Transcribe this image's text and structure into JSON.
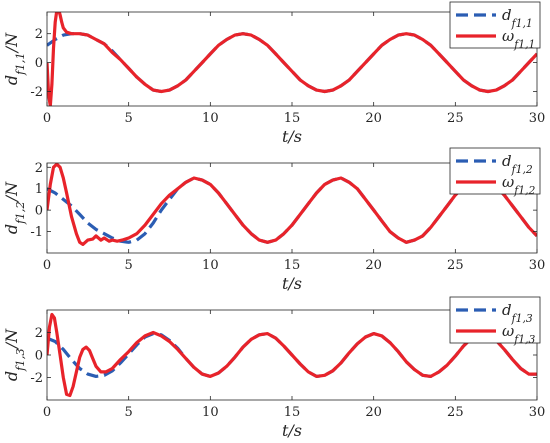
{
  "chart_data": [
    {
      "type": "line",
      "ylabel": "d_{f1,1}/N",
      "xlabel": "t/s",
      "xlim": [
        0,
        30
      ],
      "ylim": [
        -3,
        3.5
      ],
      "xticks": [
        0,
        5,
        10,
        15,
        20,
        25,
        30
      ],
      "yticks": [
        -2,
        0,
        2
      ],
      "legend_position": "top-right",
      "grid": false,
      "series": [
        {
          "name": "d_{f1,1}",
          "style": "dashed",
          "color": "#2b5db3",
          "x": [
            0,
            0.5,
            1,
            1.5,
            2,
            2.5,
            3,
            3.5,
            4,
            4.5,
            5,
            5.5,
            6,
            6.5,
            7,
            7.5,
            8,
            8.5,
            9,
            9.5,
            10,
            10.5,
            11,
            11.5,
            12,
            12.5,
            13,
            13.5,
            14,
            14.5,
            15,
            15.5,
            16,
            16.5,
            17,
            17.5,
            18,
            18.5,
            19,
            19.5,
            20,
            20.5,
            21,
            21.5,
            22,
            22.5,
            23,
            23.5,
            24,
            24.5,
            25,
            25.5,
            26,
            26.5,
            27,
            27.5,
            28,
            28.5,
            29,
            29.5,
            30
          ],
          "y": [
            1.2,
            1.6,
            1.9,
            2.0,
            2.0,
            1.9,
            1.6,
            1.3,
            0.8,
            0.2,
            -0.4,
            -1.0,
            -1.5,
            -1.9,
            -2.0,
            -1.9,
            -1.6,
            -1.2,
            -0.6,
            0.0,
            0.6,
            1.2,
            1.6,
            1.9,
            2.0,
            1.9,
            1.6,
            1.2,
            0.6,
            0.0,
            -0.6,
            -1.2,
            -1.6,
            -1.9,
            -2.0,
            -1.9,
            -1.6,
            -1.2,
            -0.6,
            0.0,
            0.6,
            1.2,
            1.6,
            1.9,
            2.0,
            1.9,
            1.6,
            1.2,
            0.6,
            0.0,
            -0.6,
            -1.2,
            -1.6,
            -1.9,
            -2.0,
            -1.9,
            -1.6,
            -1.2,
            -0.6,
            0.0,
            0.6
          ]
        },
        {
          "name": "ω_{f1,1}",
          "style": "solid",
          "color": "#e8232a",
          "x": [
            0,
            0.1,
            0.2,
            0.3,
            0.4,
            0.5,
            0.6,
            0.7,
            0.8,
            0.9,
            1.0,
            1.2,
            1.5,
            1.8,
            2,
            2.5,
            3,
            3.5,
            4,
            4.5,
            5,
            5.5,
            6,
            6.5,
            7,
            7.5,
            8,
            8.5,
            9,
            9.5,
            10,
            10.5,
            11,
            11.5,
            12,
            12.5,
            13,
            13.5,
            14,
            14.5,
            15,
            15.5,
            16,
            16.5,
            17,
            17.5,
            18,
            18.5,
            19,
            19.5,
            20,
            20.5,
            21,
            21.5,
            22,
            22.5,
            23,
            23.5,
            24,
            24.5,
            25,
            25.5,
            26,
            26.5,
            27,
            27.5,
            28,
            28.5,
            29,
            29.5,
            30
          ],
          "y": [
            0.0,
            -2.2,
            -3.0,
            -1.5,
            1.0,
            2.8,
            3.6,
            3.7,
            3.3,
            2.8,
            2.4,
            2.1,
            2.0,
            2.0,
            2.0,
            1.9,
            1.6,
            1.3,
            0.7,
            0.2,
            -0.4,
            -1.0,
            -1.5,
            -1.9,
            -2.0,
            -1.9,
            -1.6,
            -1.2,
            -0.6,
            0.0,
            0.6,
            1.2,
            1.6,
            1.9,
            2.0,
            1.9,
            1.6,
            1.2,
            0.6,
            0.0,
            -0.6,
            -1.2,
            -1.6,
            -1.9,
            -2.0,
            -1.9,
            -1.6,
            -1.2,
            -0.6,
            0.0,
            0.6,
            1.2,
            1.6,
            1.9,
            2.0,
            1.9,
            1.6,
            1.2,
            0.6,
            0.0,
            -0.6,
            -1.2,
            -1.6,
            -1.9,
            -2.0,
            -1.9,
            -1.6,
            -1.2,
            -0.6,
            0.0,
            0.6
          ]
        }
      ]
    },
    {
      "type": "line",
      "ylabel": "d_{f1,2}/N",
      "xlabel": "t/s",
      "xlim": [
        0,
        30
      ],
      "ylim": [
        -2,
        2.2
      ],
      "xticks": [
        0,
        5,
        10,
        15,
        20,
        25,
        30
      ],
      "yticks": [
        -1,
        0,
        1,
        2
      ],
      "legend_position": "top-right",
      "grid": false,
      "series": [
        {
          "name": "d_{f1,2}",
          "style": "dashed",
          "color": "#2b5db3",
          "x": [
            0,
            0.5,
            1,
            1.5,
            2,
            2.5,
            3,
            3.5,
            4,
            4.5,
            5,
            5.5,
            6,
            6.5,
            7,
            7.5,
            8,
            8.5,
            9,
            9.5,
            10,
            10.5,
            11,
            11.5,
            12,
            12.5,
            13,
            13.5,
            14,
            14.5,
            15,
            15.5,
            16,
            16.5,
            17,
            17.5,
            18,
            18.5,
            19,
            19.5,
            20,
            20.5,
            21,
            21.5,
            22,
            22.5,
            23,
            23.5,
            24,
            24.5,
            25,
            25.5,
            26,
            26.5,
            27,
            27.5,
            28,
            28.5,
            29,
            29.5,
            30
          ],
          "y": [
            1.0,
            0.8,
            0.5,
            0.2,
            -0.2,
            -0.6,
            -0.9,
            -1.1,
            -1.3,
            -1.45,
            -1.5,
            -1.4,
            -1.1,
            -0.6,
            0.0,
            0.5,
            1.0,
            1.3,
            1.5,
            1.4,
            1.2,
            0.8,
            0.3,
            -0.2,
            -0.7,
            -1.1,
            -1.4,
            -1.5,
            -1.4,
            -1.1,
            -0.7,
            -0.2,
            0.3,
            0.8,
            1.2,
            1.4,
            1.5,
            1.3,
            1.0,
            0.5,
            0.0,
            -0.5,
            -1.0,
            -1.3,
            -1.5,
            -1.4,
            -1.2,
            -0.8,
            -0.3,
            0.2,
            0.7,
            1.1,
            1.4,
            1.5,
            1.4,
            1.1,
            0.7,
            0.2,
            -0.3,
            -0.8,
            -1.2
          ]
        },
        {
          "name": "ω_{f1,2}",
          "style": "solid",
          "color": "#e8232a",
          "x": [
            0,
            0.2,
            0.4,
            0.6,
            0.8,
            1.0,
            1.2,
            1.5,
            1.8,
            2.0,
            2.2,
            2.5,
            2.8,
            3.0,
            3.3,
            3.5,
            3.8,
            4.0,
            4.3,
            4.6,
            5.0,
            5.5,
            6,
            6.5,
            7,
            7.5,
            8,
            8.5,
            9,
            9.5,
            10,
            10.5,
            11,
            11.5,
            12,
            12.5,
            13,
            13.5,
            14,
            14.5,
            15,
            15.5,
            16,
            16.5,
            17,
            17.5,
            18,
            18.5,
            19,
            19.5,
            20,
            20.5,
            21,
            21.5,
            22,
            22.5,
            23,
            23.5,
            24,
            24.5,
            25,
            25.5,
            26,
            26.5,
            27,
            27.5,
            28,
            28.5,
            29,
            29.5,
            30
          ],
          "y": [
            0.0,
            1.2,
            2.0,
            2.15,
            2.0,
            1.5,
            0.8,
            -0.3,
            -1.1,
            -1.5,
            -1.6,
            -1.4,
            -1.35,
            -1.2,
            -1.4,
            -1.3,
            -1.45,
            -1.4,
            -1.45,
            -1.4,
            -1.3,
            -1.1,
            -0.7,
            -0.2,
            0.3,
            0.7,
            1.0,
            1.3,
            1.5,
            1.4,
            1.2,
            0.8,
            0.3,
            -0.2,
            -0.7,
            -1.1,
            -1.4,
            -1.5,
            -1.4,
            -1.1,
            -0.7,
            -0.2,
            0.3,
            0.8,
            1.2,
            1.4,
            1.5,
            1.3,
            1.0,
            0.5,
            0.0,
            -0.5,
            -1.0,
            -1.3,
            -1.5,
            -1.4,
            -1.2,
            -0.8,
            -0.3,
            0.2,
            0.7,
            1.1,
            1.4,
            1.5,
            1.4,
            1.1,
            0.7,
            0.2,
            -0.3,
            -0.8,
            -1.2
          ]
        }
      ]
    },
    {
      "type": "line",
      "ylabel": "d_{f1,3}/N",
      "xlabel": "t/s",
      "xlim": [
        0,
        30
      ],
      "ylim": [
        -4,
        4
      ],
      "xticks": [
        0,
        5,
        10,
        15,
        20,
        25,
        30
      ],
      "yticks": [
        -2,
        0,
        2
      ],
      "legend_position": "top-right",
      "grid": false,
      "series": [
        {
          "name": "d_{f1,3}",
          "style": "dashed",
          "color": "#2b5db3",
          "x": [
            0,
            0.5,
            1,
            1.5,
            2,
            2.5,
            3,
            3.5,
            4,
            4.5,
            5,
            5.5,
            6,
            6.5,
            7,
            7.5,
            8,
            8.5,
            9,
            9.5,
            10,
            10.5,
            11,
            11.5,
            12,
            12.5,
            13,
            13.5,
            14,
            14.5,
            15,
            15.5,
            16,
            16.5,
            17,
            17.5,
            18,
            18.5,
            19,
            19.5,
            20,
            20.5,
            21,
            21.5,
            22,
            22.5,
            23,
            23.5,
            24,
            24.5,
            25,
            25.5,
            26,
            26.5,
            27,
            27.5,
            28,
            28.5,
            29,
            29.5,
            30
          ],
          "y": [
            1.5,
            1.2,
            0.5,
            -0.4,
            -1.2,
            -1.7,
            -1.9,
            -1.8,
            -1.4,
            -0.7,
            0.1,
            0.9,
            1.6,
            1.9,
            1.8,
            1.3,
            0.6,
            -0.3,
            -1.1,
            -1.7,
            -1.9,
            -1.6,
            -1.0,
            -0.2,
            0.7,
            1.4,
            1.8,
            1.9,
            1.5,
            0.8,
            0.0,
            -0.8,
            -1.5,
            -1.9,
            -1.8,
            -1.4,
            -0.7,
            0.2,
            1.0,
            1.6,
            1.9,
            1.7,
            1.1,
            0.3,
            -0.6,
            -1.3,
            -1.8,
            -1.9,
            -1.5,
            -0.9,
            -0.1,
            0.8,
            1.5,
            1.9,
            1.8,
            1.3,
            0.5,
            -0.4,
            -1.2,
            -1.7,
            -1.7
          ]
        },
        {
          "name": "ω_{f1,3}",
          "style": "solid",
          "color": "#e8232a",
          "x": [
            0,
            0.15,
            0.3,
            0.45,
            0.6,
            0.8,
            1.0,
            1.2,
            1.4,
            1.6,
            1.8,
            2.0,
            2.2,
            2.4,
            2.6,
            2.8,
            3.0,
            3.3,
            3.6,
            4.0,
            4.5,
            5,
            5.5,
            6,
            6.5,
            7,
            7.5,
            8,
            8.5,
            9,
            9.5,
            10,
            10.5,
            11,
            11.5,
            12,
            12.5,
            13,
            13.5,
            14,
            14.5,
            15,
            15.5,
            16,
            16.5,
            17,
            17.5,
            18,
            18.5,
            19,
            19.5,
            20,
            20.5,
            21,
            21.5,
            22,
            22.5,
            23,
            23.5,
            24,
            24.5,
            25,
            25.5,
            26,
            26.5,
            27,
            27.5,
            28,
            28.5,
            29,
            29.5,
            30
          ],
          "y": [
            0.0,
            2.5,
            3.6,
            3.3,
            2.0,
            0.0,
            -2.0,
            -3.5,
            -3.6,
            -2.8,
            -1.5,
            -0.2,
            0.5,
            0.7,
            0.4,
            -0.3,
            -1.0,
            -1.5,
            -1.5,
            -1.2,
            -0.4,
            0.3,
            1.1,
            1.7,
            2.0,
            1.7,
            1.2,
            0.5,
            -0.3,
            -1.1,
            -1.7,
            -1.9,
            -1.6,
            -1.0,
            -0.2,
            0.7,
            1.4,
            1.8,
            1.9,
            1.5,
            0.8,
            0.0,
            -0.8,
            -1.5,
            -1.9,
            -1.8,
            -1.4,
            -0.7,
            0.2,
            1.0,
            1.6,
            1.9,
            1.7,
            1.1,
            0.3,
            -0.6,
            -1.3,
            -1.8,
            -1.9,
            -1.5,
            -0.9,
            -0.1,
            0.8,
            1.5,
            1.9,
            1.8,
            1.3,
            0.5,
            -0.4,
            -1.2,
            -1.7,
            -1.7
          ]
        }
      ]
    }
  ]
}
